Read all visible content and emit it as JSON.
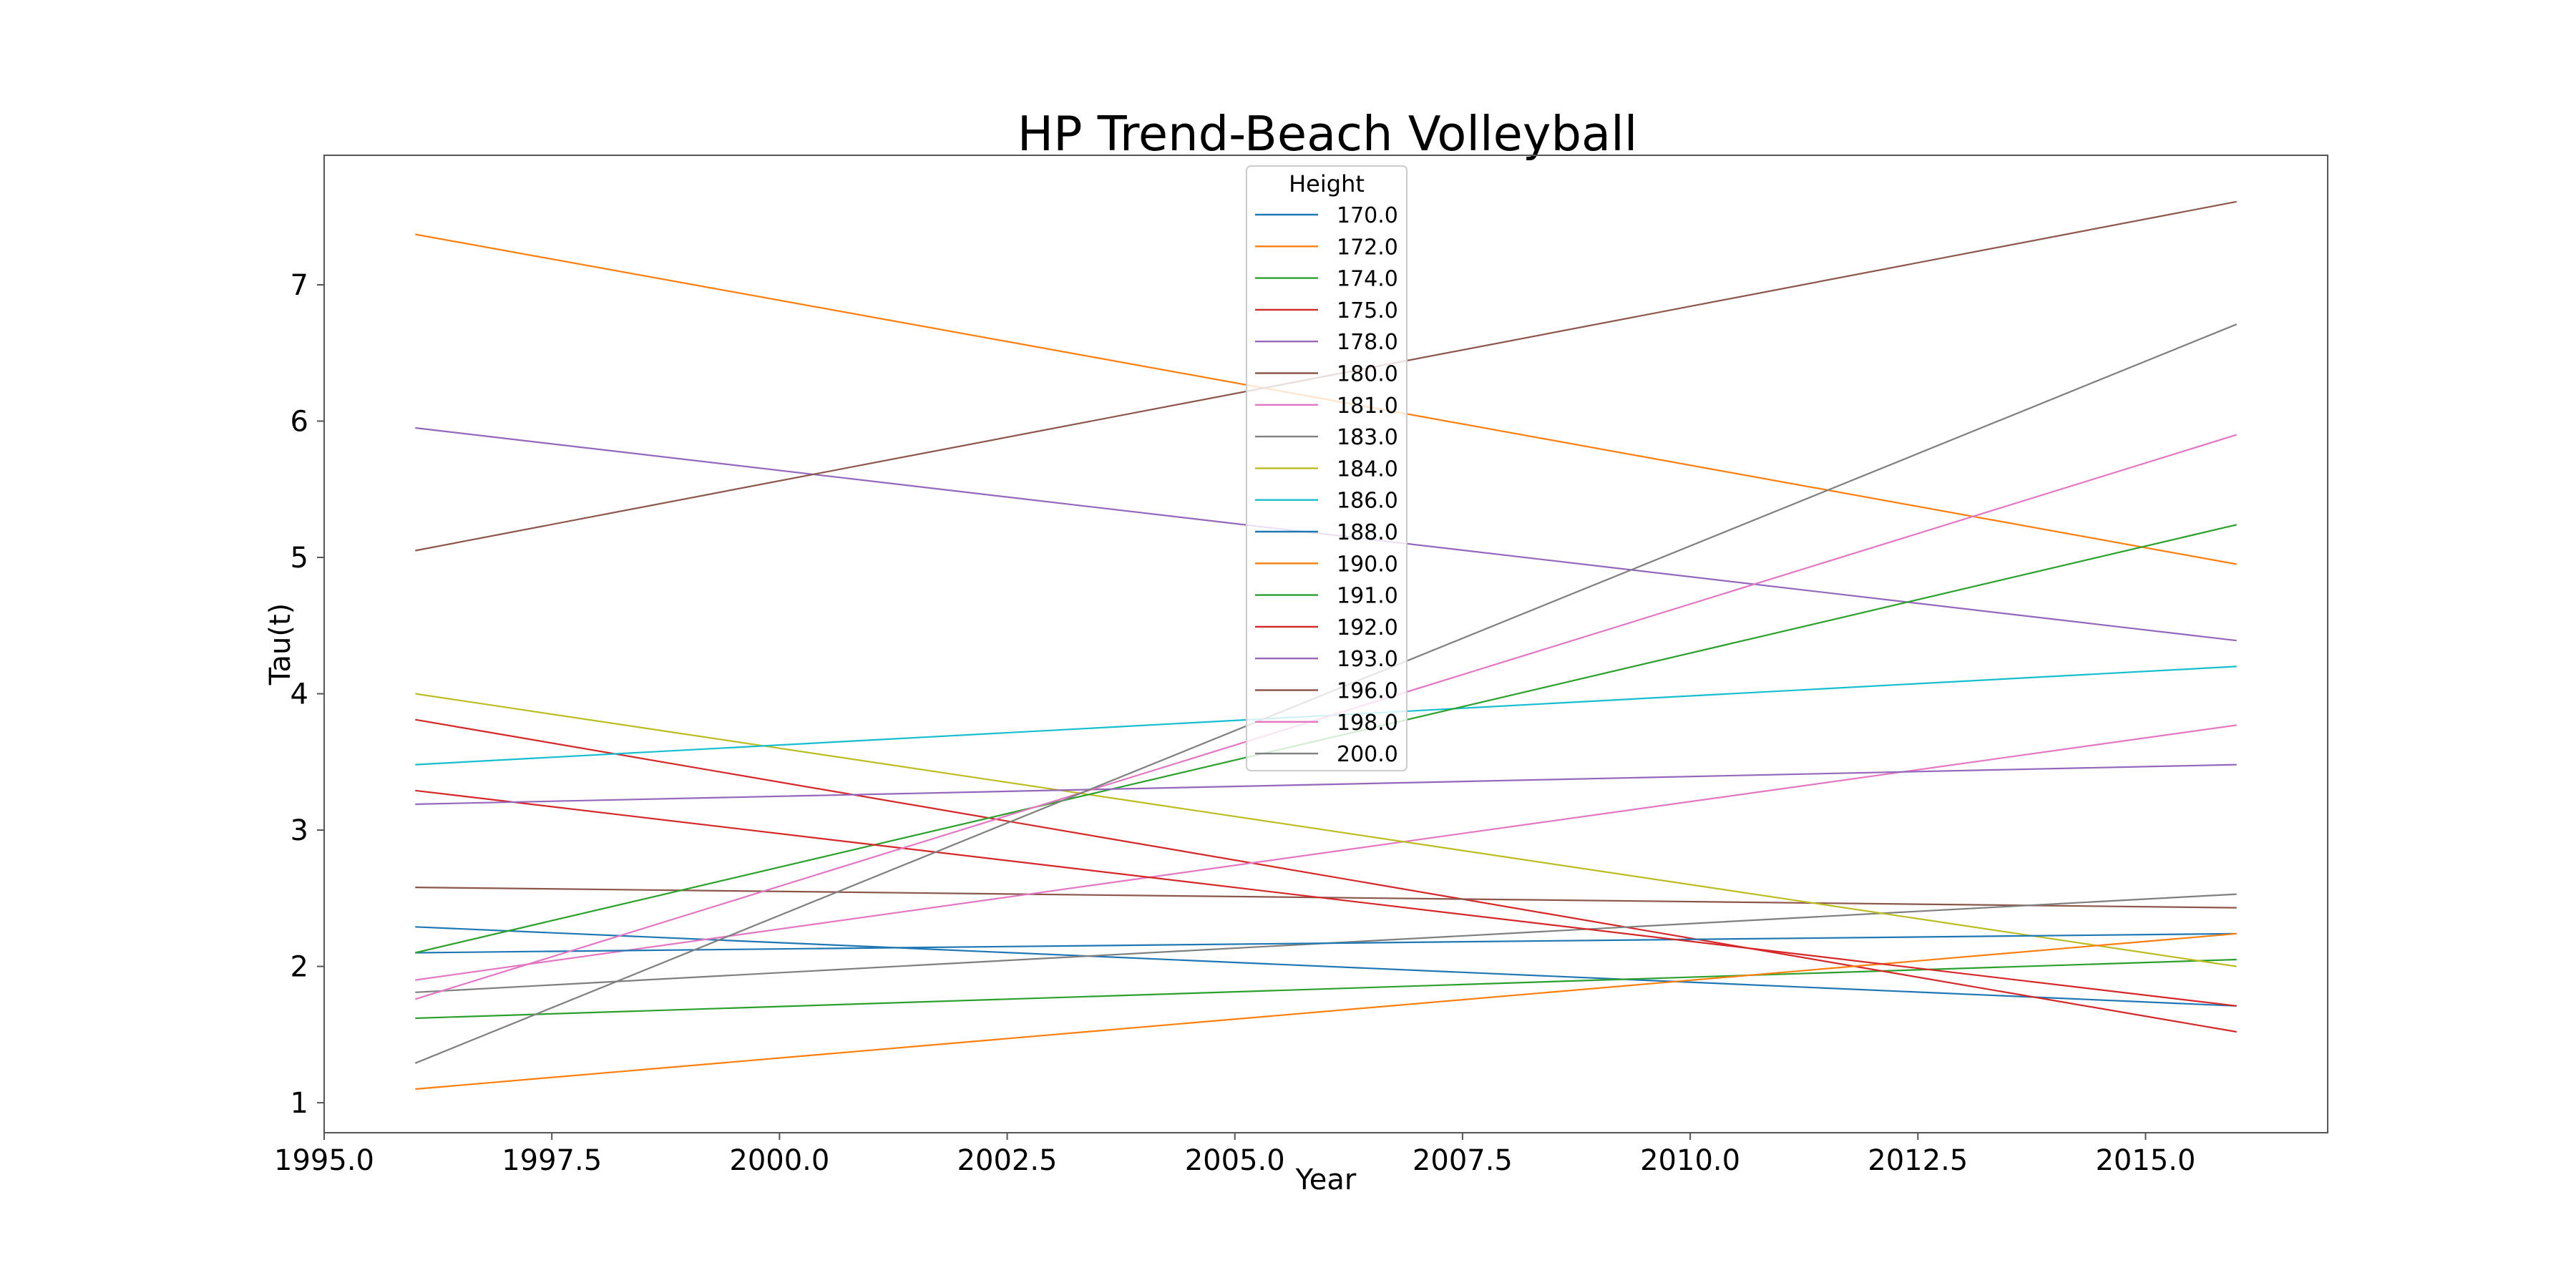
{
  "chart_data": {
    "type": "line",
    "title": "HP Trend-Beach Volleyball",
    "xlabel": "Year",
    "ylabel": "Tau(t)",
    "xlim": [
      1995.0,
      2017.0
    ],
    "ylim": [
      0.78,
      7.95
    ],
    "x_ticks": [
      1995.0,
      1997.5,
      2000.0,
      2002.5,
      2005.0,
      2007.5,
      2010.0,
      2012.5,
      2015.0
    ],
    "x_tick_labels": [
      "1995.0",
      "1997.5",
      "2000.0",
      "2002.5",
      "2005.0",
      "2007.5",
      "2010.0",
      "2012.5",
      "2015.0"
    ],
    "y_ticks": [
      1,
      2,
      3,
      4,
      5,
      6,
      7
    ],
    "y_tick_labels": [
      "1",
      "2",
      "3",
      "4",
      "5",
      "6",
      "7"
    ],
    "grid": false,
    "legend": {
      "title": "Height",
      "placement": "top-center"
    },
    "x": [
      1996,
      2016
    ],
    "series": [
      {
        "name": "170.0",
        "color": "#1f77b4",
        "values": [
          2.29,
          1.71
        ]
      },
      {
        "name": "172.0",
        "color": "#ff7f0e",
        "values": [
          7.37,
          4.95
        ]
      },
      {
        "name": "174.0",
        "color": "#2ca02c",
        "values": [
          1.62,
          2.05
        ]
      },
      {
        "name": "175.0",
        "color": "#d62728",
        "values": [
          3.81,
          1.52
        ]
      },
      {
        "name": "178.0",
        "color": "#9467bd",
        "values": [
          5.95,
          4.39
        ]
      },
      {
        "name": "180.0",
        "color": "#8c564b",
        "values": [
          2.58,
          2.43
        ]
      },
      {
        "name": "181.0",
        "color": "#e377c2",
        "values": [
          1.9,
          3.77
        ]
      },
      {
        "name": "183.0",
        "color": "#7f7f7f",
        "values": [
          1.81,
          2.53
        ]
      },
      {
        "name": "184.0",
        "color": "#bcbd22",
        "values": [
          4.0,
          2.0
        ]
      },
      {
        "name": "186.0",
        "color": "#17becf",
        "values": [
          3.48,
          4.2
        ]
      },
      {
        "name": "188.0",
        "color": "#1f77b4",
        "values": [
          2.1,
          2.24
        ]
      },
      {
        "name": "190.0",
        "color": "#ff7f0e",
        "values": [
          1.1,
          2.24
        ]
      },
      {
        "name": "191.0",
        "color": "#2ca02c",
        "values": [
          2.1,
          5.24
        ]
      },
      {
        "name": "192.0",
        "color": "#d62728",
        "values": [
          3.29,
          1.71
        ]
      },
      {
        "name": "193.0",
        "color": "#9467bd",
        "values": [
          3.19,
          3.48
        ]
      },
      {
        "name": "196.0",
        "color": "#8c564b",
        "values": [
          5.05,
          7.61
        ]
      },
      {
        "name": "198.0",
        "color": "#e377c2",
        "values": [
          1.76,
          5.9
        ]
      },
      {
        "name": "200.0",
        "color": "#7f7f7f",
        "values": [
          1.29,
          6.71
        ]
      }
    ]
  }
}
